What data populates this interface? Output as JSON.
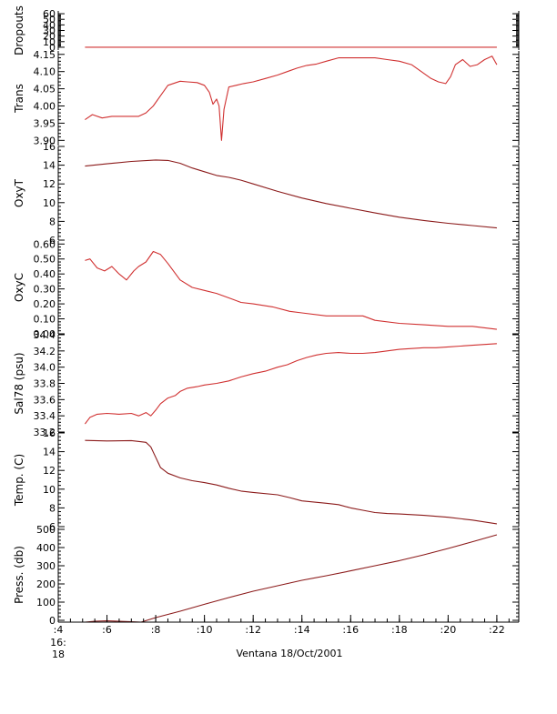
{
  "colors": {
    "trace": "#d03030",
    "trace_dark": "#8b1a1a",
    "axis": "#000000"
  },
  "chart_data": {
    "type": "line",
    "xlabel": "Ventana 18/Oct/2001",
    "x_ticks": [
      {
        "x": 4,
        "label": ":4",
        "sub": [
          "16:",
          "18"
        ]
      },
      {
        "x": 6,
        "label": ":6"
      },
      {
        "x": 8,
        "label": ":8"
      },
      {
        "x": 10,
        "label": ":10"
      },
      {
        "x": 12,
        "label": ":12"
      },
      {
        "x": 14,
        "label": ":14"
      },
      {
        "x": 16,
        "label": ":16"
      },
      {
        "x": 18,
        "label": ":18"
      },
      {
        "x": 20,
        "label": ":20"
      },
      {
        "x": 22,
        "label": ":22"
      }
    ],
    "xlim": [
      4,
      22.9
    ],
    "panels": [
      {
        "ylabel": "Dropouts",
        "ylim": [
          -5,
          65
        ],
        "ticks": [
          0,
          10,
          20,
          30,
          40,
          50,
          60
        ],
        "tick_labels": [
          "0",
          "10",
          "20",
          "30",
          "40",
          "50",
          "60"
        ],
        "series": [
          {
            "x": [
              5.1,
              22.0
            ],
            "y": [
              0,
              0
            ]
          }
        ]
      },
      {
        "ylabel": "Trans",
        "ylim": [
          3.885,
          4.16
        ],
        "ticks": [
          3.9,
          3.95,
          4.0,
          4.05,
          4.1,
          4.15
        ],
        "tick_labels": [
          "3.90",
          "3.95",
          "4.00",
          "4.05",
          "4.10",
          "4.15"
        ],
        "series": [
          {
            "x": [
              5.1,
              5.4,
              5.8,
              6.2,
              6.8,
              7.3,
              7.6,
              7.9,
              8.2,
              8.5,
              9.0,
              9.3,
              9.7,
              10.0,
              10.2,
              10.35,
              10.5,
              10.6,
              10.7,
              10.8,
              11.0,
              11.3,
              11.6,
              12.0,
              12.5,
              13.0,
              13.4,
              13.8,
              14.2,
              14.6,
              15.0,
              15.5,
              16.0,
              16.5,
              17.0,
              17.5,
              18.0,
              18.5,
              18.9,
              19.3,
              19.6,
              19.9,
              20.1,
              20.3,
              20.6,
              20.9,
              21.2,
              21.5,
              21.8,
              22.0
            ],
            "y": [
              3.96,
              3.975,
              3.965,
              3.97,
              3.97,
              3.97,
              3.98,
              4.0,
              4.03,
              4.06,
              4.072,
              4.07,
              4.068,
              4.06,
              4.04,
              4.005,
              4.02,
              4.0,
              3.9,
              3.99,
              4.055,
              4.06,
              4.065,
              4.07,
              4.08,
              4.09,
              4.1,
              4.11,
              4.118,
              4.122,
              4.13,
              4.14,
              4.14,
              4.14,
              4.14,
              4.135,
              4.13,
              4.12,
              4.1,
              4.08,
              4.07,
              4.065,
              4.085,
              4.12,
              4.135,
              4.115,
              4.12,
              4.135,
              4.145,
              4.12
            ]
          }
        ]
      },
      {
        "ylabel": "OxyT",
        "ylim": [
          6,
          16
        ],
        "ticks": [
          6,
          8,
          10,
          12,
          14,
          16
        ],
        "tick_labels": [
          "6",
          "8",
          "10",
          "12",
          "14",
          "16"
        ],
        "series": [
          {
            "x": [
              5.1,
              6.0,
              7.0,
              8.0,
              8.5,
              9.0,
              9.5,
              10.0,
              10.5,
              11.0,
              11.5,
              12.0,
              13.0,
              14.0,
              15.0,
              16.0,
              17.0,
              18.0,
              19.0,
              20.0,
              21.0,
              22.0
            ],
            "y": [
              13.9,
              14.15,
              14.4,
              14.55,
              14.5,
              14.2,
              13.7,
              13.3,
              12.9,
              12.7,
              12.4,
              12.0,
              11.2,
              10.5,
              9.9,
              9.4,
              8.9,
              8.45,
              8.1,
              7.8,
              7.55,
              7.3
            ]
          }
        ]
      },
      {
        "ylabel": "OxyC",
        "ylim": [
          0.0,
          0.62
        ],
        "ticks": [
          0.0,
          0.1,
          0.2,
          0.3,
          0.4,
          0.5,
          0.6
        ],
        "tick_labels": [
          "0.00",
          "0.10",
          "0.20",
          "0.30",
          "0.40",
          "0.50",
          "0.60"
        ],
        "series": [
          {
            "x": [
              5.1,
              5.3,
              5.6,
              5.9,
              6.2,
              6.5,
              6.8,
              7.1,
              7.3,
              7.6,
              7.9,
              8.2,
              8.5,
              9.0,
              9.5,
              10.0,
              10.5,
              11.0,
              11.5,
              12.0,
              12.8,
              13.5,
              14.0,
              15.0,
              16.0,
              16.5,
              17.0,
              18.0,
              19.0,
              20.0,
              21.0,
              22.0
            ],
            "y": [
              0.49,
              0.5,
              0.44,
              0.42,
              0.45,
              0.4,
              0.36,
              0.42,
              0.45,
              0.48,
              0.55,
              0.53,
              0.47,
              0.36,
              0.31,
              0.29,
              0.27,
              0.24,
              0.21,
              0.2,
              0.18,
              0.15,
              0.14,
              0.12,
              0.12,
              0.12,
              0.09,
              0.07,
              0.06,
              0.05,
              0.05,
              0.03
            ]
          }
        ]
      },
      {
        "ylabel": "Sal78 (psu)",
        "ylim": [
          33.2,
          34.4
        ],
        "ticks": [
          33.2,
          33.4,
          33.6,
          33.8,
          34.0,
          34.2,
          34.4
        ],
        "tick_labels": [
          "33.2",
          "33.4",
          "33.6",
          "33.8",
          "34.0",
          "34.2",
          "34.4"
        ],
        "series": [
          {
            "x": [
              5.1,
              5.3,
              5.6,
              6.0,
              6.5,
              7.0,
              7.3,
              7.6,
              7.8,
              8.0,
              8.2,
              8.5,
              8.8,
              9.0,
              9.3,
              9.7,
              10.0,
              10.5,
              11.0,
              11.5,
              12.0,
              12.5,
              13.0,
              13.4,
              13.8,
              14.2,
              14.6,
              15.0,
              15.5,
              16.0,
              16.5,
              17.0,
              17.5,
              18.0,
              18.5,
              19.0,
              19.5,
              20.0,
              20.5,
              21.0,
              21.5,
              22.0
            ],
            "y": [
              33.3,
              33.38,
              33.42,
              33.43,
              33.42,
              33.43,
              33.4,
              33.44,
              33.4,
              33.47,
              33.55,
              33.62,
              33.65,
              33.7,
              33.74,
              33.76,
              33.78,
              33.8,
              33.83,
              33.88,
              33.92,
              33.95,
              34.0,
              34.03,
              34.08,
              34.12,
              34.15,
              34.17,
              34.18,
              34.17,
              34.17,
              34.18,
              34.2,
              34.22,
              34.23,
              34.24,
              34.24,
              34.25,
              34.26,
              34.27,
              34.28,
              34.29
            ]
          }
        ]
      },
      {
        "ylabel": "Temp. (C)",
        "ylim": [
          6,
          16
        ],
        "ticks": [
          6,
          8,
          10,
          12,
          14,
          16
        ],
        "tick_labels": [
          "6",
          "8",
          "10",
          "12",
          "14",
          "16"
        ],
        "series": [
          {
            "x": [
              5.1,
              6.0,
              7.0,
              7.6,
              7.8,
              8.0,
              8.2,
              8.5,
              9.0,
              9.5,
              10.0,
              10.5,
              11.0,
              11.5,
              12.0,
              13.0,
              13.5,
              14.0,
              15.0,
              15.5,
              16.0,
              16.5,
              17.0,
              17.5,
              18.0,
              19.0,
              20.0,
              21.0,
              22.0
            ],
            "y": [
              15.2,
              15.15,
              15.18,
              15.0,
              14.5,
              13.4,
              12.3,
              11.7,
              11.2,
              10.9,
              10.7,
              10.45,
              10.1,
              9.8,
              9.65,
              9.4,
              9.1,
              8.75,
              8.5,
              8.35,
              8.0,
              7.75,
              7.5,
              7.4,
              7.35,
              7.2,
              7.0,
              6.7,
              6.3
            ]
          }
        ]
      },
      {
        "ylabel": "Press. (db)",
        "ylim": [
          -10,
          510
        ],
        "ticks": [
          0,
          100,
          200,
          300,
          400,
          500
        ],
        "tick_labels": [
          "0",
          "100",
          "200",
          "300",
          "400",
          "500"
        ],
        "series": [
          {
            "x": [
              5.1,
              5.5,
              6.0,
              6.5,
              7.0,
              7.4,
              8.0,
              9.0,
              10.0,
              11.0,
              12.0,
              13.0,
              14.0,
              15.0,
              16.0,
              17.0,
              18.0,
              19.0,
              20.0,
              21.0,
              22.0
            ],
            "y": [
              -10,
              -5,
              -3,
              -5,
              -8,
              -10,
              15,
              50,
              88,
              125,
              160,
              190,
              220,
              245,
              272,
              300,
              328,
              360,
              395,
              432,
              470
            ]
          }
        ]
      }
    ]
  }
}
